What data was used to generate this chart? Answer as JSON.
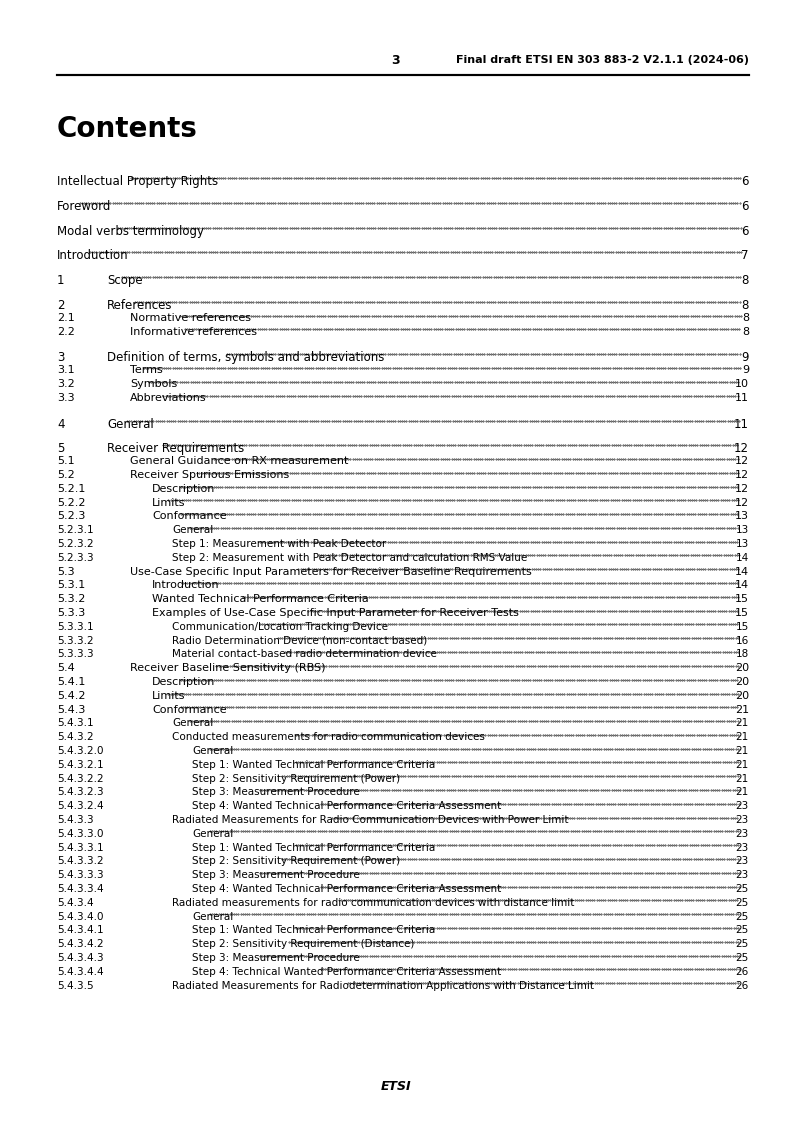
{
  "header_page": "3",
  "header_right": "Final draft ETSI EN 303 883-2 V2.1.1 (2024-06)",
  "footer_text": "ETSI",
  "title": "Contents",
  "background": "#ffffff",
  "entries": [
    {
      "level": 0,
      "num": "",
      "text": "Intellectual Property Rights",
      "page": "6",
      "extra_before": true
    },
    {
      "level": 0,
      "num": "",
      "text": "Foreword",
      "page": "6",
      "extra_before": true
    },
    {
      "level": 0,
      "num": "",
      "text": "Modal verbs terminology",
      "page": "6",
      "extra_before": true
    },
    {
      "level": 0,
      "num": "",
      "text": "Introduction",
      "page": "7",
      "extra_before": true
    },
    {
      "level": 1,
      "num": "1",
      "text": "Scope",
      "page": "8",
      "extra_before": true
    },
    {
      "level": 1,
      "num": "2",
      "text": "References",
      "page": "8",
      "extra_before": true
    },
    {
      "level": 2,
      "num": "2.1",
      "text": "Normative references",
      "page": "8",
      "extra_before": false
    },
    {
      "level": 2,
      "num": "2.2",
      "text": "Informative references",
      "page": "8",
      "extra_before": false
    },
    {
      "level": 1,
      "num": "3",
      "text": "Definition of terms, symbols and abbreviations",
      "page": "9",
      "extra_before": true
    },
    {
      "level": 2,
      "num": "3.1",
      "text": "Terms",
      "page": "9",
      "extra_before": false
    },
    {
      "level": 2,
      "num": "3.2",
      "text": "Symbols",
      "page": "10",
      "extra_before": false
    },
    {
      "level": 2,
      "num": "3.3",
      "text": "Abbreviations",
      "page": "11",
      "extra_before": false
    },
    {
      "level": 1,
      "num": "4",
      "text": "General",
      "page": "11",
      "extra_before": true
    },
    {
      "level": 1,
      "num": "5",
      "text": "Receiver Requirements",
      "page": "12",
      "extra_before": true
    },
    {
      "level": 2,
      "num": "5.1",
      "text": "General Guidance on RX measurement",
      "page": "12",
      "extra_before": false
    },
    {
      "level": 2,
      "num": "5.2",
      "text": "Receiver Spurious Emissions",
      "page": "12",
      "extra_before": false
    },
    {
      "level": 3,
      "num": "5.2.1",
      "text": "Description",
      "page": "12",
      "extra_before": false
    },
    {
      "level": 3,
      "num": "5.2.2",
      "text": "Limits",
      "page": "12",
      "extra_before": false
    },
    {
      "level": 3,
      "num": "5.2.3",
      "text": "Conformance",
      "page": "13",
      "extra_before": false
    },
    {
      "level": 4,
      "num": "5.2.3.1",
      "text": "General",
      "page": "13",
      "extra_before": false
    },
    {
      "level": 4,
      "num": "5.2.3.2",
      "text": "Step 1: Measurement with Peak Detector",
      "page": "13",
      "extra_before": false
    },
    {
      "level": 4,
      "num": "5.2.3.3",
      "text": "Step 2: Measurement with Peak Detector and calculation RMS Value",
      "page": "14",
      "extra_before": false
    },
    {
      "level": 2,
      "num": "5.3",
      "text": "Use-Case Specific Input Parameters for Receiver Baseline Requirements",
      "page": "14",
      "extra_before": false
    },
    {
      "level": 3,
      "num": "5.3.1",
      "text": "Introduction",
      "page": "14",
      "extra_before": false
    },
    {
      "level": 3,
      "num": "5.3.2",
      "text": "Wanted Technical Performance Criteria",
      "page": "15",
      "extra_before": false
    },
    {
      "level": 3,
      "num": "5.3.3",
      "text": "Examples of Use-Case Specific Input Parameter for Receiver Tests",
      "page": "15",
      "extra_before": false
    },
    {
      "level": 4,
      "num": "5.3.3.1",
      "text": "Communication/Location Tracking Device",
      "page": "15",
      "extra_before": false
    },
    {
      "level": 4,
      "num": "5.3.3.2",
      "text": "Radio Determination Device (non-contact based)",
      "page": "16",
      "extra_before": false
    },
    {
      "level": 4,
      "num": "5.3.3.3",
      "text": "Material contact-based radio determination device",
      "page": "18",
      "extra_before": false
    },
    {
      "level": 2,
      "num": "5.4",
      "text": "Receiver Baseline Sensitivity (RBS)",
      "page": "20",
      "extra_before": false
    },
    {
      "level": 3,
      "num": "5.4.1",
      "text": "Description",
      "page": "20",
      "extra_before": false
    },
    {
      "level": 3,
      "num": "5.4.2",
      "text": "Limits",
      "page": "20",
      "extra_before": false
    },
    {
      "level": 3,
      "num": "5.4.3",
      "text": "Conformance",
      "page": "21",
      "extra_before": false
    },
    {
      "level": 4,
      "num": "5.4.3.1",
      "text": "General",
      "page": "21",
      "extra_before": false
    },
    {
      "level": 4,
      "num": "5.4.3.2",
      "text": "Conducted measurements for radio communication devices",
      "page": "21",
      "extra_before": false
    },
    {
      "level": 5,
      "num": "5.4.3.2.0",
      "text": "General",
      "page": "21",
      "extra_before": false
    },
    {
      "level": 5,
      "num": "5.4.3.2.1",
      "text": "Step 1: Wanted Technical Performance Criteria",
      "page": "21",
      "extra_before": false
    },
    {
      "level": 5,
      "num": "5.4.3.2.2",
      "text": "Step 2: Sensitivity Requirement (Power)",
      "page": "21",
      "extra_before": false
    },
    {
      "level": 5,
      "num": "5.4.3.2.3",
      "text": "Step 3: Measurement Procedure",
      "page": "21",
      "extra_before": false
    },
    {
      "level": 5,
      "num": "5.4.3.2.4",
      "text": "Step 4: Wanted Technical Performance Criteria Assessment",
      "page": "23",
      "extra_before": false
    },
    {
      "level": 4,
      "num": "5.4.3.3",
      "text": "Radiated Measurements for Radio Communication Devices with Power Limit",
      "page": "23",
      "extra_before": false
    },
    {
      "level": 5,
      "num": "5.4.3.3.0",
      "text": "General",
      "page": "23",
      "extra_before": false
    },
    {
      "level": 5,
      "num": "5.4.3.3.1",
      "text": "Step 1: Wanted Technical Performance Criteria",
      "page": "23",
      "extra_before": false
    },
    {
      "level": 5,
      "num": "5.4.3.3.2",
      "text": "Step 2: Sensitivity Requirement (Power)",
      "page": "23",
      "extra_before": false
    },
    {
      "level": 5,
      "num": "5.4.3.3.3",
      "text": "Step 3: Measurement Procedure",
      "page": "23",
      "extra_before": false
    },
    {
      "level": 5,
      "num": "5.4.3.3.4",
      "text": "Step 4: Wanted Technical Performance Criteria Assessment",
      "page": "25",
      "extra_before": false
    },
    {
      "level": 4,
      "num": "5.4.3.4",
      "text": "Radiated measurements for radio communication devices with distance limit",
      "page": "25",
      "extra_before": false
    },
    {
      "level": 5,
      "num": "5.4.3.4.0",
      "text": "General",
      "page": "25",
      "extra_before": false
    },
    {
      "level": 5,
      "num": "5.4.3.4.1",
      "text": "Step 1: Wanted Technical Performance Criteria",
      "page": "25",
      "extra_before": false
    },
    {
      "level": 5,
      "num": "5.4.3.4.2",
      "text": "Step 2: Sensitivity Requirement (Distance)",
      "page": "25",
      "extra_before": false
    },
    {
      "level": 5,
      "num": "5.4.3.4.3",
      "text": "Step 3: Measurement Procedure",
      "page": "25",
      "extra_before": false
    },
    {
      "level": 5,
      "num": "5.4.3.4.4",
      "text": "Step 4: Technical Wanted Performance Criteria Assessment",
      "page": "26",
      "extra_before": false
    },
    {
      "level": 4,
      "num": "5.4.3.5",
      "text": "Radiated Measurements for Radiodetermination Applications with Distance Limit",
      "page": "26",
      "extra_before": false
    }
  ]
}
